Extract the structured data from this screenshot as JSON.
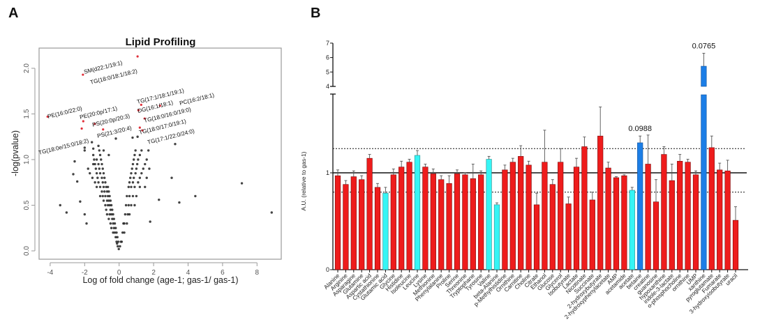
{
  "panels": {
    "a_letter": "A",
    "b_letter": "B"
  },
  "chart_data": [
    {
      "type": "scatter",
      "title": "Lipid Profiling",
      "xlabel": "Log of fold change (age-1; gas-1/ gas-1)",
      "ylabel": "-log(pvalue)",
      "xlim": [
        -4.6,
        9.5
      ],
      "ylim": [
        -0.05,
        2.23
      ],
      "xticks": [
        "-4",
        "-2",
        "0",
        "2",
        "4",
        "6",
        "8"
      ],
      "yticks": [
        "0.0",
        "0.5",
        "1.0",
        "1.5",
        "2.0"
      ],
      "grid": false,
      "highlight_color": "#e0303a",
      "point_color": "#222222",
      "labeled_points": [
        {
          "label": "SM(d22:1/19:1)",
          "x": -2.1,
          "y": 1.93
        },
        {
          "label": "TG(18:0/18:1/18:2)",
          "x": 1.07,
          "y": 2.13
        },
        {
          "label": "PE(16:0/22:0)",
          "x": -4.15,
          "y": 1.47
        },
        {
          "label": "PE(20:0p/17:1)",
          "x": -2.08,
          "y": 1.42
        },
        {
          "label": "PS(20:0p/20:3)",
          "x": -1.41,
          "y": 1.39
        },
        {
          "label": "TG(18:0e/15:0/18:2)",
          "x": -2.17,
          "y": 1.34
        },
        {
          "label": "PS(21:3/20:4)",
          "x": -0.93,
          "y": 1.33
        },
        {
          "label": "TG(17:1/18:1/19:1)",
          "x": 1.28,
          "y": 1.6
        },
        {
          "label": "DG(16:1/18:1)",
          "x": 1.12,
          "y": 1.54
        },
        {
          "label": "PC(16:2/18:1)",
          "x": 2.37,
          "y": 1.59
        },
        {
          "label": "TG(18:0/16:0/19:0)",
          "x": 1.48,
          "y": 1.45
        },
        {
          "label": "TG(18:0/17:0/19:1)",
          "x": 1.2,
          "y": 1.35
        },
        {
          "label": "TG(17:1/22:0/24:0)",
          "x": 1.35,
          "y": 1.32
        }
      ],
      "points": [
        [
          -3.42,
          0.5
        ],
        [
          -3.05,
          0.42
        ],
        [
          -2.58,
          0.98
        ],
        [
          -2.66,
          0.84
        ],
        [
          -2.43,
          0.76
        ],
        [
          -2.26,
          0.54
        ],
        [
          -1.89,
          0.3
        ],
        [
          -2.0,
          0.4
        ],
        [
          -1.58,
          1.19
        ],
        [
          -0.19,
          1.23
        ],
        [
          0.78,
          1.24
        ],
        [
          1.07,
          1.25
        ],
        [
          3.25,
          1.17
        ],
        [
          3.05,
          0.8
        ],
        [
          7.12,
          0.74
        ],
        [
          4.42,
          0.6
        ],
        [
          3.49,
          0.53
        ],
        [
          2.31,
          0.56
        ],
        [
          8.85,
          0.42
        ],
        [
          1.8,
          0.32
        ],
        [
          -2.0,
          1.1
        ],
        [
          -2.0,
          1.13
        ],
        [
          -1.2,
          1.15
        ],
        [
          -1.5,
          1.12
        ],
        [
          -0.02,
          0.02
        ],
        [
          -0.08,
          0.05
        ],
        [
          -0.12,
          0.08
        ],
        [
          -0.15,
          0.1
        ],
        [
          -0.05,
          0.1
        ],
        [
          -0.2,
          0.15
        ],
        [
          -0.1,
          0.15
        ],
        [
          -0.25,
          0.2
        ],
        [
          -0.15,
          0.2
        ],
        [
          -0.35,
          0.2
        ],
        [
          -0.3,
          0.25
        ],
        [
          -0.2,
          0.25
        ],
        [
          -0.45,
          0.25
        ],
        [
          -0.35,
          0.3
        ],
        [
          -0.25,
          0.3
        ],
        [
          -0.5,
          0.3
        ],
        [
          -0.4,
          0.35
        ],
        [
          -0.3,
          0.35
        ],
        [
          -0.6,
          0.35
        ],
        [
          -0.45,
          0.4
        ],
        [
          -0.35,
          0.4
        ],
        [
          -0.7,
          0.4
        ],
        [
          -0.55,
          0.4
        ],
        [
          -0.5,
          0.45
        ],
        [
          -0.4,
          0.45
        ],
        [
          -0.75,
          0.45
        ],
        [
          -0.55,
          0.5
        ],
        [
          -0.45,
          0.5
        ],
        [
          -0.8,
          0.5
        ],
        [
          -0.65,
          0.5
        ],
        [
          -0.6,
          0.55
        ],
        [
          -0.5,
          0.55
        ],
        [
          -0.9,
          0.55
        ],
        [
          -0.7,
          0.55
        ],
        [
          -0.65,
          0.6
        ],
        [
          -0.55,
          0.6
        ],
        [
          -0.95,
          0.6
        ],
        [
          -0.8,
          0.6
        ],
        [
          -1.1,
          0.6
        ],
        [
          -0.7,
          0.65
        ],
        [
          -0.6,
          0.65
        ],
        [
          -1.0,
          0.65
        ],
        [
          -0.85,
          0.65
        ],
        [
          -0.75,
          0.7
        ],
        [
          -0.65,
          0.7
        ],
        [
          -1.1,
          0.7
        ],
        [
          -0.9,
          0.7
        ],
        [
          -1.3,
          0.7
        ],
        [
          -0.8,
          0.75
        ],
        [
          -1.2,
          0.75
        ],
        [
          -0.95,
          0.75
        ],
        [
          -1.4,
          0.75
        ],
        [
          -0.85,
          0.8
        ],
        [
          -1.25,
          0.8
        ],
        [
          -1.0,
          0.8
        ],
        [
          -1.55,
          0.8
        ],
        [
          -0.9,
          0.85
        ],
        [
          -1.3,
          0.85
        ],
        [
          -1.1,
          0.85
        ],
        [
          -1.7,
          0.85
        ],
        [
          -0.95,
          0.9
        ],
        [
          -1.35,
          0.9
        ],
        [
          -1.15,
          0.9
        ],
        [
          -1.8,
          0.9
        ],
        [
          -1.0,
          0.95
        ],
        [
          -1.4,
          0.95
        ],
        [
          -1.2,
          0.95
        ],
        [
          -1.5,
          0.95
        ],
        [
          -1.45,
          1.0
        ],
        [
          -1.3,
          1.0
        ],
        [
          -1.05,
          1.0
        ],
        [
          -1.1,
          1.05
        ],
        [
          -1.5,
          1.05
        ],
        [
          -0.6,
          1.05
        ],
        [
          -1.15,
          1.1
        ],
        [
          -0.9,
          1.1
        ],
        [
          0.05,
          0.05
        ],
        [
          0.1,
          0.1
        ],
        [
          0.15,
          0.1
        ],
        [
          0.2,
          0.2
        ],
        [
          0.3,
          0.2
        ],
        [
          0.3,
          0.3
        ],
        [
          0.45,
          0.3
        ],
        [
          0.25,
          0.3
        ],
        [
          0.35,
          0.4
        ],
        [
          0.5,
          0.4
        ],
        [
          0.6,
          0.4
        ],
        [
          0.4,
          0.5
        ],
        [
          0.55,
          0.5
        ],
        [
          0.7,
          0.5
        ],
        [
          0.9,
          0.5
        ],
        [
          0.45,
          0.6
        ],
        [
          0.6,
          0.6
        ],
        [
          0.8,
          0.6
        ],
        [
          1.0,
          0.6
        ],
        [
          0.55,
          0.7
        ],
        [
          0.7,
          0.7
        ],
        [
          0.9,
          0.7
        ],
        [
          1.2,
          0.7
        ],
        [
          1.5,
          0.7
        ],
        [
          0.6,
          0.75
        ],
        [
          0.8,
          0.75
        ],
        [
          1.1,
          0.75
        ],
        [
          0.65,
          0.8
        ],
        [
          0.85,
          0.8
        ],
        [
          1.2,
          0.8
        ],
        [
          1.6,
          0.8
        ],
        [
          0.7,
          0.85
        ],
        [
          0.95,
          0.85
        ],
        [
          1.3,
          0.85
        ],
        [
          0.75,
          0.9
        ],
        [
          1.0,
          0.9
        ],
        [
          1.4,
          0.9
        ],
        [
          1.75,
          0.9
        ],
        [
          0.8,
          0.95
        ],
        [
          1.05,
          0.95
        ],
        [
          1.5,
          0.95
        ],
        [
          0.85,
          1.0
        ],
        [
          1.1,
          1.0
        ],
        [
          1.6,
          1.0
        ],
        [
          0.9,
          1.05
        ],
        [
          1.2,
          1.05
        ],
        [
          0.95,
          1.1
        ],
        [
          1.3,
          1.1
        ],
        [
          1.7,
          1.1
        ]
      ]
    },
    {
      "type": "bar",
      "ylabel": "A.U. (relative to gas-1)",
      "yticks_lower": [
        "0",
        "1"
      ],
      "yticks_upper": [
        "4",
        "5",
        "6",
        "7"
      ],
      "ylim_lower": [
        0,
        1.81
      ],
      "ylim_upper": [
        4,
        7
      ],
      "axis_break": true,
      "reference_line": 1,
      "threshold_lines": [
        0.8,
        1.25
      ],
      "colors": {
        "red": "#ee1c1c",
        "cyan": "#36f5f5",
        "blue": "#1c7ee6"
      },
      "categories": [
        "Alanine",
        "Arginine",
        "Asparagine",
        "Glutamine",
        "Aspartic acid",
        "Cystathionine",
        "Glutamic acid",
        "Glycine",
        "Histidine",
        "Isoleucine",
        "Leucine",
        "Lysine",
        "Methionine",
        "Phenylalanine",
        "Proline",
        "Serine",
        "Threonine",
        "Tryptophane",
        "Tyrosine",
        "Valine",
        "beta-Alanine",
        "p-Methylhistidine",
        "Ornithine",
        "Carnitine",
        "Choline",
        "Citrate",
        "Ethanol",
        "Glucose",
        "Glycerol",
        "Isobutyrate",
        "Lactate",
        "Nicotinate",
        "Succinate",
        "2-hydroxybutyrate",
        "2-hydroxyphenylacetate",
        "AMP",
        "acetamide",
        "acetate",
        "betaine",
        "creatine",
        "guanosine",
        "hypoxanthine",
        "indole-3-lactate",
        "o-phosphocholine",
        "ornithine",
        "UMP",
        "xanthine",
        "pyroglutamate",
        "Fumarate",
        "3-hydroxyisobutyrate",
        "uracil"
      ],
      "values": [
        0.97,
        0.88,
        0.96,
        0.93,
        1.15,
        0.85,
        0.79,
        0.98,
        1.06,
        1.11,
        1.18,
        1.06,
        0.99,
        0.93,
        0.89,
        0.99,
        0.98,
        0.94,
        0.98,
        1.14,
        0.67,
        1.03,
        1.11,
        1.17,
        1.08,
        0.67,
        1.11,
        0.88,
        1.11,
        0.68,
        1.06,
        1.27,
        0.72,
        1.38,
        1.05,
        0.95,
        0.97,
        0.82,
        1.31,
        1.09,
        0.7,
        1.19,
        0.92,
        1.12,
        1.11,
        0.98,
        5.4,
        1.26,
        1.03,
        1.02,
        0.51
      ],
      "errors": [
        0.06,
        0.04,
        0.06,
        0.04,
        0.04,
        0.04,
        0.06,
        0.06,
        0.06,
        0.03,
        0.05,
        0.03,
        0.05,
        0.04,
        0.08,
        0.04,
        0.02,
        0.15,
        0.04,
        0.03,
        0.02,
        0.05,
        0.04,
        0.11,
        0.04,
        0.12,
        0.33,
        0.05,
        0.14,
        0.07,
        0.09,
        0.1,
        0.08,
        0.3,
        0.06,
        0.01,
        0.01,
        0.03,
        0.07,
        0.3,
        0.23,
        0.08,
        0.17,
        0.07,
        0.03,
        0.04,
        0.9,
        0.12,
        0.07,
        0.11,
        0.14
      ],
      "bar_colors": [
        "red",
        "red",
        "red",
        "red",
        "red",
        "red",
        "cyan",
        "red",
        "red",
        "red",
        "cyan",
        "red",
        "red",
        "red",
        "red",
        "red",
        "red",
        "red",
        "red",
        "cyan",
        "cyan",
        "red",
        "red",
        "red",
        "red",
        "red",
        "red",
        "red",
        "red",
        "red",
        "red",
        "red",
        "red",
        "red",
        "red",
        "red",
        "red",
        "cyan",
        "blue",
        "red",
        "red",
        "red",
        "red",
        "red",
        "red",
        "red",
        "blue",
        "red",
        "red",
        "red",
        "red"
      ],
      "annotations": [
        {
          "category": "betaine",
          "text": "0.0988"
        },
        {
          "category": "xanthine",
          "text": "0.0765"
        }
      ]
    }
  ]
}
